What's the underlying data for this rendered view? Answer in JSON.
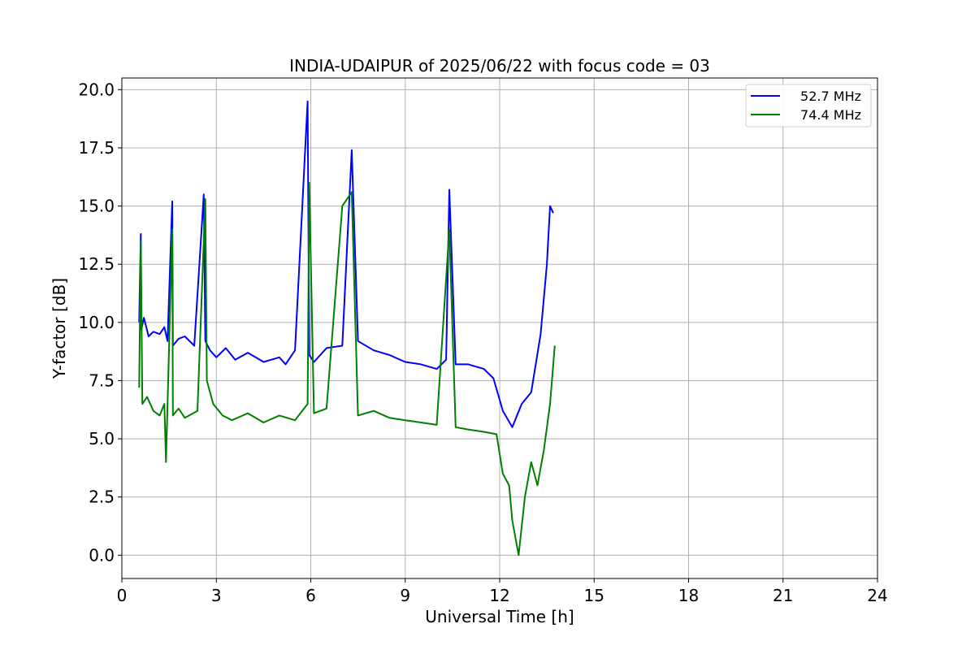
{
  "chart_data": {
    "type": "line",
    "title": "INDIA-UDAIPUR of 2025/06/22 with focus code = 03",
    "xlabel": "Universal Time [h]",
    "ylabel": "Y-factor [dB]",
    "xlim": [
      0,
      24
    ],
    "ylim": [
      -1.0,
      20.5
    ],
    "xticks": [
      0,
      3,
      6,
      9,
      12,
      15,
      18,
      21,
      24
    ],
    "yticks": [
      0.0,
      2.5,
      5.0,
      7.5,
      10.0,
      12.5,
      15.0,
      17.5,
      20.0
    ],
    "xtick_labels": [
      "0",
      "3",
      "6",
      "9",
      "12",
      "15",
      "18",
      "21",
      "24"
    ],
    "ytick_labels": [
      "0.0",
      "2.5",
      "5.0",
      "7.5",
      "10.0",
      "12.5",
      "15.0",
      "17.5",
      "20.0"
    ],
    "grid": true,
    "legend_position": "top-right",
    "series": [
      {
        "name": "52.7 MHz",
        "color": "#0000ff",
        "x": [
          0.55,
          0.6,
          0.62,
          0.7,
          0.85,
          1.0,
          1.2,
          1.35,
          1.45,
          1.6,
          1.62,
          1.8,
          2.0,
          2.3,
          2.6,
          2.65,
          2.8,
          3.0,
          3.3,
          3.6,
          4.0,
          4.5,
          5.0,
          5.2,
          5.5,
          5.9,
          5.95,
          6.1,
          6.5,
          7.0,
          7.3,
          7.5,
          8.0,
          8.5,
          9.0,
          9.5,
          10.0,
          10.3,
          10.4,
          10.6,
          11.0,
          11.5,
          11.8,
          12.1,
          12.4,
          12.7,
          13.0,
          13.3,
          13.5,
          13.6,
          13.7
        ],
        "y": [
          10.0,
          13.8,
          9.7,
          10.2,
          9.4,
          9.6,
          9.5,
          9.8,
          9.2,
          15.2,
          9.0,
          9.3,
          9.4,
          9.0,
          15.5,
          9.2,
          8.8,
          8.5,
          8.9,
          8.4,
          8.7,
          8.3,
          8.5,
          8.2,
          8.8,
          19.5,
          8.6,
          8.3,
          8.9,
          9.0,
          17.4,
          9.2,
          8.8,
          8.6,
          8.3,
          8.2,
          8.0,
          8.4,
          15.7,
          8.2,
          8.2,
          8.0,
          7.6,
          6.2,
          5.5,
          6.5,
          7.0,
          9.5,
          12.5,
          15.0,
          14.7
        ]
      },
      {
        "name": "74.4 MHz",
        "color": "#008000",
        "x": [
          0.55,
          0.6,
          0.65,
          0.8,
          1.0,
          1.2,
          1.35,
          1.4,
          1.6,
          1.62,
          1.8,
          2.0,
          2.4,
          2.65,
          2.7,
          2.9,
          3.2,
          3.5,
          4.0,
          4.5,
          5.0,
          5.5,
          5.9,
          5.95,
          6.1,
          6.5,
          7.0,
          7.3,
          7.5,
          8.0,
          8.5,
          9.0,
          9.5,
          10.0,
          10.4,
          10.6,
          11.0,
          11.5,
          11.9,
          12.1,
          12.3,
          12.4,
          12.6,
          12.8,
          13.0,
          13.2,
          13.4,
          13.6,
          13.75
        ],
        "y": [
          7.2,
          13.5,
          6.5,
          6.8,
          6.2,
          6.0,
          6.5,
          4.0,
          14.0,
          6.0,
          6.3,
          5.9,
          6.2,
          15.3,
          7.5,
          6.5,
          6.0,
          5.8,
          6.1,
          5.7,
          6.0,
          5.8,
          6.5,
          16.0,
          6.1,
          6.3,
          15.0,
          15.6,
          6.0,
          6.2,
          5.9,
          5.8,
          5.7,
          5.6,
          14.0,
          5.5,
          5.4,
          5.3,
          5.2,
          3.5,
          3.0,
          1.5,
          0.0,
          2.5,
          4.0,
          3.0,
          4.5,
          6.5,
          9.0
        ]
      }
    ]
  }
}
